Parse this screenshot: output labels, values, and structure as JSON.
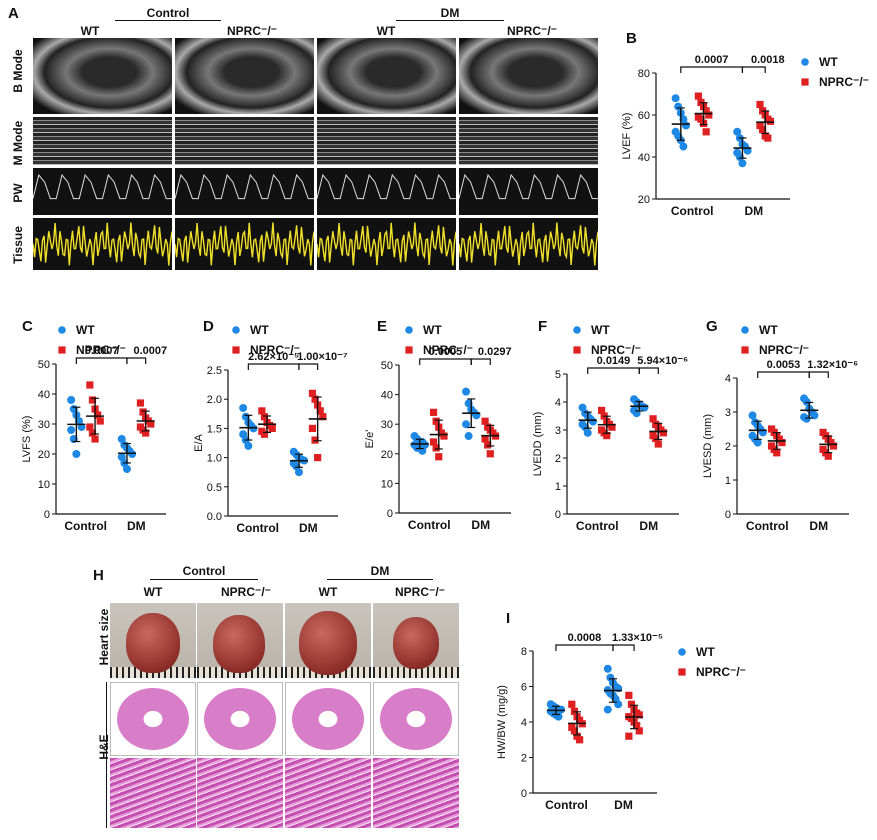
{
  "panel_labels": {
    "A": "A",
    "B": "B",
    "C": "C",
    "D": "D",
    "E": "E",
    "F": "F",
    "G": "G",
    "H": "H",
    "I": "I"
  },
  "panelA": {
    "groups": [
      "Control",
      "DM"
    ],
    "columns": [
      "WT",
      "NPRC⁻/⁻",
      "WT",
      "NPRC⁻/⁻"
    ],
    "rows": [
      "B Mode",
      "M Mode",
      "PW",
      "Tissue"
    ]
  },
  "panelH": {
    "groups": [
      "Control",
      "DM"
    ],
    "columns": [
      "WT",
      "NPRC⁻/⁻",
      "WT",
      "NPRC⁻/⁻"
    ],
    "rows": [
      "Heart size",
      "H&E"
    ]
  },
  "legend": {
    "wt": "WT",
    "nprc": "NPRC⁻/⁻"
  },
  "colors": {
    "wt": "#1e88e5",
    "nprc": "#e02020"
  },
  "chart_data": [
    {
      "id": "B",
      "type": "scatter",
      "ylabel": "LVEF (%)",
      "ylim": [
        20,
        80
      ],
      "yticks": [
        20,
        40,
        60,
        80
      ],
      "categories": [
        "Control",
        "DM"
      ],
      "pvalues": [
        "0.0007",
        "0.0018"
      ],
      "series": [
        {
          "name": "WT",
          "values": [
            [
              68,
              64,
              61,
              58,
              55,
              52,
              50,
              48,
              45
            ],
            [
              52,
              49,
              46,
              45,
              43,
              42,
              40,
              37
            ]
          ]
        },
        {
          "name": "NPRC⁻/⁻",
          "values": [
            [
              69,
              66,
              64,
              62,
              60,
              59,
              58,
              56,
              52
            ],
            [
              65,
              62,
              60,
              58,
              57,
              55,
              53,
              50,
              49
            ]
          ]
        }
      ]
    },
    {
      "id": "C",
      "type": "scatter",
      "ylabel": "LVFS (%)",
      "ylim": [
        0,
        50
      ],
      "yticks": [
        0,
        10,
        20,
        30,
        40,
        50
      ],
      "categories": [
        "Control",
        "DM"
      ],
      "pvalues": [
        "0.0007",
        "0.0007"
      ],
      "series": [
        {
          "name": "WT",
          "values": [
            [
              38,
              35,
              33,
              31,
              29,
              28,
              25,
              20
            ],
            [
              25,
              23,
              22,
              21,
              20,
              19,
              17,
              15
            ]
          ]
        },
        {
          "name": "NPRC⁻/⁻",
          "values": [
            [
              43,
              38,
              35,
              33,
              31,
              29,
              27,
              25
            ],
            [
              37,
              34,
              32,
              31,
              30,
              29,
              28,
              27
            ]
          ]
        }
      ]
    },
    {
      "id": "D",
      "type": "scatter",
      "ylabel": "E/A",
      "ylim": [
        0,
        2.5
      ],
      "yticks": [
        0.0,
        0.5,
        1.0,
        1.5,
        2.0,
        2.5
      ],
      "categories": [
        "Control",
        "DM"
      ],
      "pvalues": [
        "2.62×10⁻⁵",
        "1.00×10⁻⁷"
      ],
      "series": [
        {
          "name": "WT",
          "values": [
            [
              1.85,
              1.7,
              1.6,
              1.55,
              1.5,
              1.4,
              1.3,
              1.2
            ],
            [
              1.1,
              1.05,
              1.0,
              0.97,
              0.95,
              0.9,
              0.85,
              0.75
            ]
          ]
        },
        {
          "name": "NPRC⁻/⁻",
          "values": [
            [
              1.8,
              1.7,
              1.6,
              1.55,
              1.5,
              1.45,
              1.4
            ],
            [
              2.1,
              2.0,
              1.9,
              1.8,
              1.7,
              1.5,
              1.3,
              1.0
            ]
          ]
        }
      ]
    },
    {
      "id": "E",
      "type": "scatter",
      "ylabel": "E/e'",
      "ylim": [
        0,
        50
      ],
      "yticks": [
        0,
        10,
        20,
        30,
        40,
        50
      ],
      "categories": [
        "Control",
        "DM"
      ],
      "pvalues": [
        "0.0005",
        "0.0297"
      ],
      "series": [
        {
          "name": "WT",
          "values": [
            [
              26,
              25,
              24,
              24,
              23,
              23,
              22,
              22,
              21
            ],
            [
              41,
              37,
              35,
              34,
              33,
              30,
              26
            ]
          ]
        },
        {
          "name": "NPRC⁻/⁻",
          "values": [
            [
              34,
              31,
              29,
              27,
              26,
              24,
              22,
              19
            ],
            [
              31,
              29,
              28,
              27,
              26,
              25,
              23,
              20
            ]
          ]
        }
      ]
    },
    {
      "id": "F",
      "type": "scatter",
      "ylabel": "LVEDD (mm)",
      "ylim": [
        0,
        5
      ],
      "yticks": [
        0,
        1,
        2,
        3,
        4,
        5
      ],
      "categories": [
        "Control",
        "DM"
      ],
      "pvalues": [
        "0.0149",
        "5.94×10⁻⁶"
      ],
      "series": [
        {
          "name": "WT",
          "values": [
            [
              3.8,
              3.6,
              3.5,
              3.4,
              3.3,
              3.2,
              3.1,
              2.9
            ],
            [
              4.1,
              4.0,
              3.9,
              3.85,
              3.8,
              3.7,
              3.6
            ]
          ]
        },
        {
          "name": "NPRC⁻/⁻",
          "values": [
            [
              3.7,
              3.5,
              3.3,
              3.2,
              3.1,
              3.0,
              2.9,
              2.8
            ],
            [
              3.4,
              3.2,
              3.1,
              3.0,
              2.9,
              2.8,
              2.7,
              2.5
            ]
          ]
        }
      ]
    },
    {
      "id": "G",
      "type": "scatter",
      "ylabel": "LVESD (mm)",
      "ylim": [
        0,
        4
      ],
      "yticks": [
        0,
        1,
        2,
        3,
        4
      ],
      "categories": [
        "Control",
        "DM"
      ],
      "pvalues": [
        "0.0053",
        "1.32×10⁻⁶"
      ],
      "series": [
        {
          "name": "WT",
          "values": [
            [
              2.9,
              2.7,
              2.6,
              2.5,
              2.4,
              2.3,
              2.2,
              2.1
            ],
            [
              3.4,
              3.3,
              3.1,
              3.0,
              2.9,
              2.85,
              2.8
            ]
          ]
        },
        {
          "name": "NPRC⁻/⁻",
          "values": [
            [
              2.5,
              2.4,
              2.3,
              2.2,
              2.1,
              2.0,
              1.9,
              1.8
            ],
            [
              2.4,
              2.3,
              2.2,
              2.1,
              2.0,
              1.9,
              1.8,
              1.7
            ]
          ]
        }
      ]
    },
    {
      "id": "I",
      "type": "scatter",
      "ylabel": "HW/BW (mg/g)",
      "ylim": [
        0,
        8
      ],
      "yticks": [
        0,
        2,
        4,
        6,
        8
      ],
      "categories": [
        "Control",
        "DM"
      ],
      "pvalues": [
        "0.0008",
        "1.33×10⁻⁵"
      ],
      "series": [
        {
          "name": "WT",
          "values": [
            [
              5.0,
              4.9,
              4.8,
              4.7,
              4.7,
              4.6,
              4.5,
              4.4,
              4.3
            ],
            [
              7.0,
              6.5,
              6.2,
              6.0,
              5.9,
              5.8,
              5.6,
              5.5,
              5.3,
              5.0,
              4.7
            ]
          ]
        },
        {
          "name": "NPRC⁻/⁻",
          "values": [
            [
              5.0,
              4.6,
              4.3,
              4.1,
              3.9,
              3.7,
              3.5,
              3.2,
              3.0
            ],
            [
              5.5,
              5.0,
              4.7,
              4.5,
              4.4,
              4.3,
              4.2,
              4.0,
              3.8,
              3.5,
              3.2
            ]
          ]
        }
      ]
    }
  ]
}
